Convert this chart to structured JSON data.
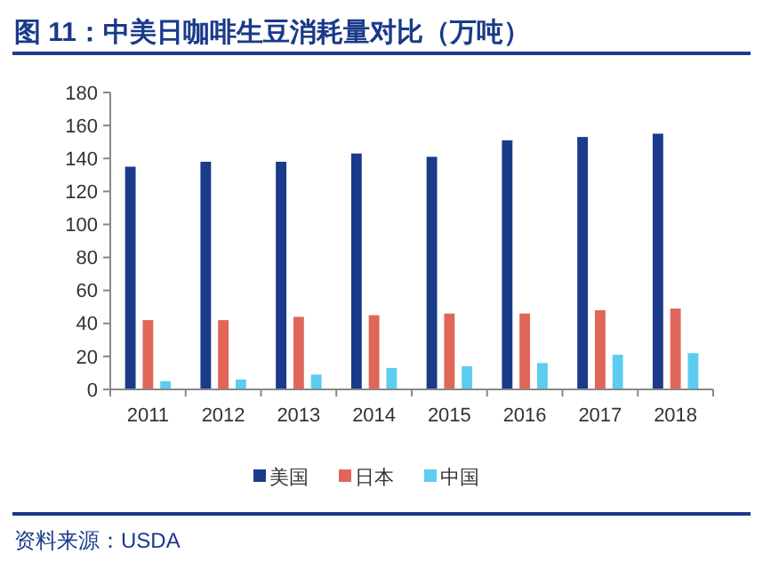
{
  "chart_data": {
    "type": "bar",
    "title": "图 11：中美日咖啡生豆消耗量对比（万吨）",
    "categories": [
      "2011",
      "2012",
      "2013",
      "2014",
      "2015",
      "2016",
      "2017",
      "2018"
    ],
    "series": [
      {
        "name": "美国",
        "color": "#1a3a8a",
        "values": [
          135,
          138,
          138,
          143,
          141,
          151,
          153,
          155
        ]
      },
      {
        "name": "日本",
        "color": "#e0665a",
        "values": [
          42,
          42,
          44,
          45,
          46,
          46,
          48,
          49
        ]
      },
      {
        "name": "中国",
        "color": "#5ccdf0",
        "values": [
          5,
          6,
          9,
          13,
          14,
          16,
          21,
          22
        ]
      }
    ],
    "ylim": [
      0,
      180
    ],
    "yticks": [
      0,
      20,
      40,
      60,
      80,
      100,
      120,
      140,
      160,
      180
    ],
    "grid": false,
    "legend": "bottom",
    "annotations": [
      "资料来源：USDA"
    ]
  }
}
